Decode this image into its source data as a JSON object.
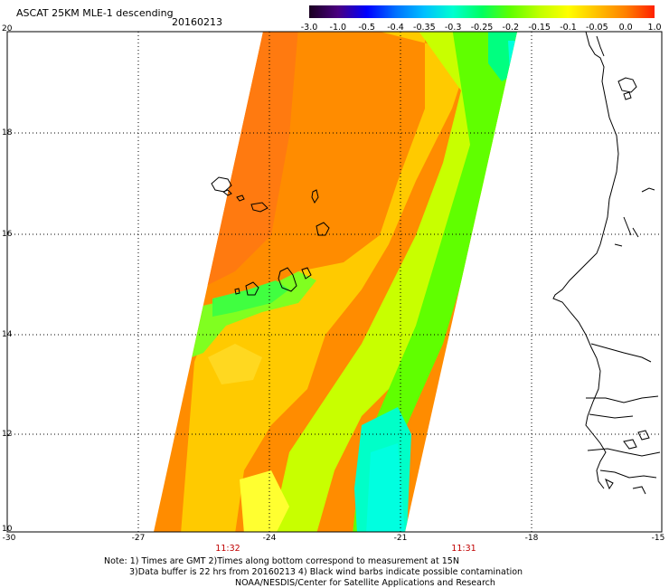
{
  "header": {
    "title": "ASCAT 25KM MLE-1 descending",
    "date": "20160213"
  },
  "colorbar": {
    "labels": [
      "-3.0",
      "-1.0",
      "-0.5",
      "-0.4",
      "-0.35",
      "-0.3",
      "-0.25",
      "-0.2",
      "-0.15",
      "-0.1",
      "-0.05",
      "0.0",
      "1.0"
    ],
    "colors": [
      "#1a0020",
      "#4a0080",
      "#0000ff",
      "#0070ff",
      "#00c0ff",
      "#00ffd0",
      "#00ff60",
      "#60ff00",
      "#c0ff00",
      "#ffff00",
      "#ffc000",
      "#ff8000",
      "#ff2000"
    ]
  },
  "axes": {
    "y_labels": [
      "20",
      "18",
      "16",
      "14",
      "12",
      "10"
    ],
    "x_labels": [
      "-30",
      "-27",
      "-24",
      "-21",
      "-18",
      "-15"
    ]
  },
  "times": [
    "11:32",
    "11:31"
  ],
  "notes": [
    "Note: 1) Times are GMT 2)Times along bottom correspond to measurement at 15N",
    "3)Data buffer is 22 hrs from 20160213 4) Black wind barbs indicate possible contamination",
    "NOAA/NESDIS/Center for Satellite Applications and Research"
  ],
  "legend_colors": {
    "orange": "#ff8a00",
    "yellow": "#ffff00",
    "green": "#60ff00",
    "cyan": "#00ffd0"
  }
}
